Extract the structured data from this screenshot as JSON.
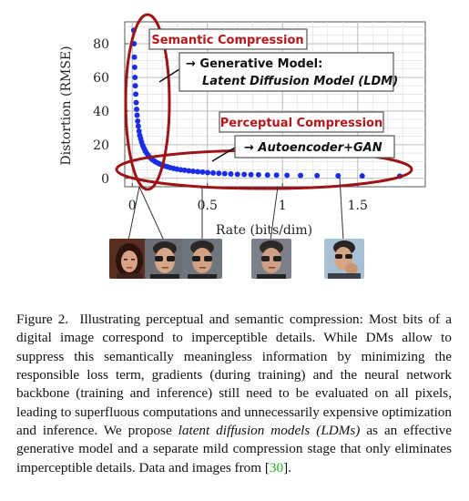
{
  "figure": {
    "annotations": {
      "semantic": "Semantic Compression",
      "generative_line1": "→ Generative Model:",
      "generative_line2": "Latent Diffusion Model (LDM)",
      "perceptual": "Perceptual Compression",
      "autoencoder": "→ Autoencoder+GAN"
    },
    "face_images": [
      "face-woman",
      "face-man-sunglasses",
      "face-man-sunglasses-2",
      "face-man-pixelated",
      "face-man-hand"
    ]
  },
  "chart_data": {
    "type": "scatter",
    "xlabel": "Rate (bits/dim)",
    "ylabel": "Distortion (RMSE)",
    "xlim": [
      -0.05,
      1.95
    ],
    "ylim": [
      -5,
      93
    ],
    "x_ticks": [
      "0",
      "0.5",
      "1",
      "1.5"
    ],
    "x_tick_values": [
      0,
      0.5,
      1,
      1.5
    ],
    "y_ticks": [
      "0",
      "20",
      "40",
      "60",
      "80"
    ],
    "y_tick_values": [
      0,
      20,
      40,
      60,
      80
    ],
    "grid": true,
    "marker_color": "#1a2ee8",
    "series": [
      {
        "values": [
          [
            0.01,
            88
          ],
          [
            0.012,
            80
          ],
          [
            0.014,
            72
          ],
          [
            0.016,
            66
          ],
          [
            0.018,
            60
          ],
          [
            0.02,
            55
          ],
          [
            0.023,
            50
          ],
          [
            0.026,
            45
          ],
          [
            0.029,
            41
          ],
          [
            0.032,
            37.5
          ],
          [
            0.036,
            34
          ],
          [
            0.04,
            31
          ],
          [
            0.045,
            28
          ],
          [
            0.05,
            25.5
          ],
          [
            0.056,
            23.5
          ],
          [
            0.062,
            21.5
          ],
          [
            0.07,
            19.5
          ],
          [
            0.078,
            17.8
          ],
          [
            0.086,
            16.3
          ],
          [
            0.095,
            15
          ],
          [
            0.105,
            13.8
          ],
          [
            0.115,
            12.7
          ],
          [
            0.125,
            11.8
          ],
          [
            0.137,
            10.9
          ],
          [
            0.15,
            10.1
          ],
          [
            0.165,
            9.3
          ],
          [
            0.18,
            8.6
          ],
          [
            0.196,
            8.0
          ],
          [
            0.213,
            7.4
          ],
          [
            0.232,
            6.9
          ],
          [
            0.252,
            6.4
          ],
          [
            0.274,
            5.9
          ],
          [
            0.297,
            5.5
          ],
          [
            0.322,
            5.1
          ],
          [
            0.348,
            4.8
          ],
          [
            0.376,
            4.5
          ],
          [
            0.405,
            4.2
          ],
          [
            0.436,
            3.9
          ],
          [
            0.468,
            3.7
          ],
          [
            0.502,
            3.4
          ],
          [
            0.538,
            3.2
          ],
          [
            0.576,
            3.0
          ],
          [
            0.615,
            2.8
          ],
          [
            0.656,
            2.6
          ],
          [
            0.7,
            2.4
          ],
          [
            0.745,
            2.3
          ],
          [
            0.79,
            2.2
          ],
          [
            0.84,
            2.1
          ],
          [
            0.9,
            2.0
          ],
          [
            0.96,
            1.9
          ],
          [
            1.03,
            1.8
          ],
          [
            1.12,
            1.7
          ],
          [
            1.23,
            1.6
          ],
          [
            1.37,
            1.5
          ],
          [
            1.53,
            1.4
          ],
          [
            1.78,
            1.3
          ]
        ]
      }
    ]
  },
  "caption": {
    "figure_label": "Figure 2.",
    "text_1": "Illustrating perceptual and semantic compression: Most bits of a digital image correspond to imperceptible details. While DMs allow to suppress this semantically meaningless information by minimizing the responsible loss term, gradients (during training) and the neural network backbone (training and inference) still need to be evaluated on all pixels, leading to superfluous computations and unnecessarily expensive optimization and inference. We propose",
    "emphasis": "latent diffusion models (LDMs)",
    "text_2": "as an effective generative model and a separate mild compression stage that only eliminates imperceptible details. Data and images from",
    "ref_open": "[",
    "ref_num": "30",
    "ref_close": "]",
    "end": "."
  }
}
